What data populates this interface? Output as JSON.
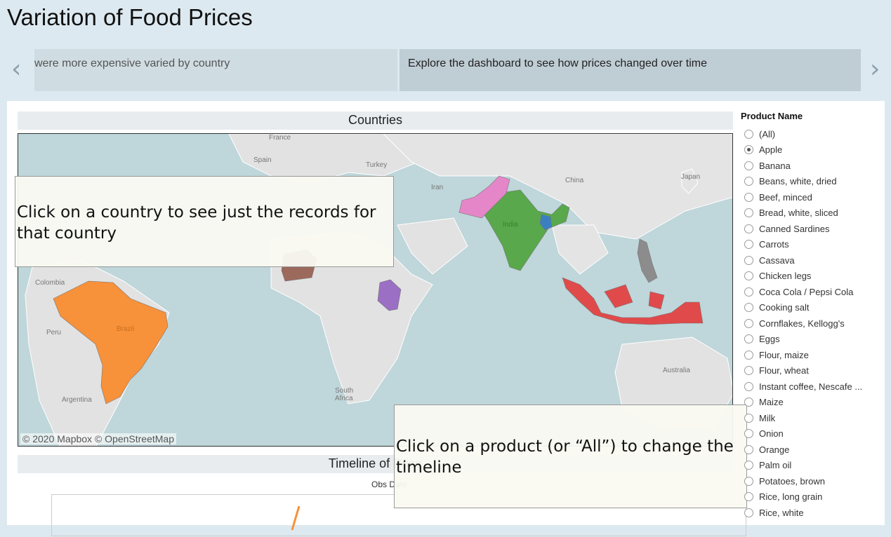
{
  "page_title": "Variation of Food Prices",
  "story": {
    "prev_arrow": "‹",
    "next_arrow": "›",
    "points": [
      {
        "text": "were more expensive varied by country"
      },
      {
        "text": "Explore the dashboard to see how prices changed over time"
      }
    ]
  },
  "map": {
    "header": "Countries",
    "attribution": "© 2020 Mapbox  © OpenStreetMap",
    "labels": {
      "france": "France",
      "spain": "Spain",
      "turkey": "Turkey",
      "iran": "Iran",
      "china": "China",
      "japan": "Japan",
      "india": "India",
      "colombia": "Colombia",
      "peru": "Peru",
      "brazil": "Brazil",
      "argentina": "Argentina",
      "south_africa": "South Africa",
      "australia": "Australia"
    },
    "country_colors": {
      "brazil": "#f7913a",
      "india": "#59a84b",
      "pakistan": "#e586c8",
      "bangladesh": "#3b7fc1",
      "nigeria": "#9b6a5c",
      "kenya": "#9b6fc4",
      "indonesia": "#e04a4a",
      "philippines": "#8c8c8c"
    }
  },
  "tooltips": {
    "country": "Click on a country to see just the records for that country",
    "product": "Click on a product (or “All”) to change the timeline"
  },
  "timeline": {
    "header": "Timeline of Price",
    "obs_label": "Obs Date"
  },
  "filter": {
    "title": "Product Name",
    "selected": "Apple",
    "options": [
      "(All)",
      "Apple",
      "Banana",
      "Beans, white, dried",
      "Beef, minced",
      "Bread, white, sliced",
      "Canned Sardines",
      "Carrots",
      "Cassava",
      "Chicken legs",
      "Coca Cola / Pepsi Cola",
      "Cooking salt",
      "Cornflakes, Kellogg's",
      "Eggs",
      "Flour, maize",
      "Flour, wheat",
      "Instant coffee, Nescafe ...",
      "Maize",
      "Milk",
      "Onion",
      "Orange",
      "Palm oil",
      "Potatoes, brown",
      "Rice, long grain",
      "Rice, white"
    ]
  }
}
